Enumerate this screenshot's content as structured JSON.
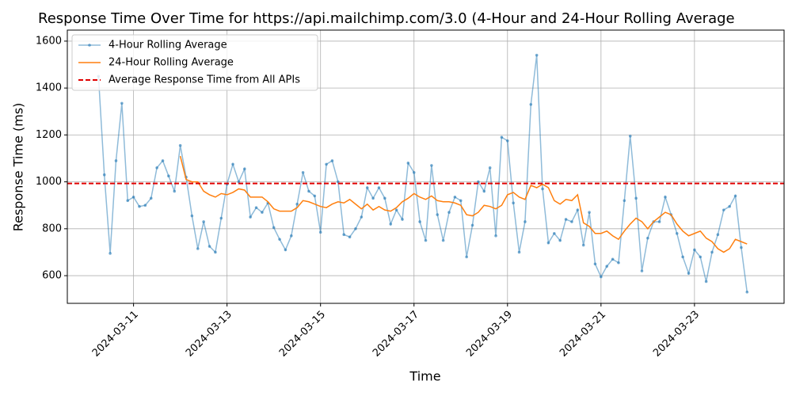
{
  "chart_data": {
    "type": "line",
    "title": "Response Time Over Time for https://api.mailchimp.com/3.0 (4-Hour and 24-Hour Rolling Average",
    "x_label": "Time",
    "y_label": "Response Time (ms)",
    "x": [
      "2024-03-10T06:00",
      "2024-03-10T09:00",
      "2024-03-10T12:00",
      "2024-03-10T15:00",
      "2024-03-10T18:00",
      "2024-03-10T21:00",
      "2024-03-11T00:00",
      "2024-03-11T03:00",
      "2024-03-11T06:00",
      "2024-03-11T09:00",
      "2024-03-11T12:00",
      "2024-03-11T15:00",
      "2024-03-11T18:00",
      "2024-03-11T21:00",
      "2024-03-12T00:00",
      "2024-03-12T03:00",
      "2024-03-12T06:00",
      "2024-03-12T09:00",
      "2024-03-12T12:00",
      "2024-03-12T15:00",
      "2024-03-12T18:00",
      "2024-03-12T21:00",
      "2024-03-13T00:00",
      "2024-03-13T03:00",
      "2024-03-13T06:00",
      "2024-03-13T09:00",
      "2024-03-13T12:00",
      "2024-03-13T15:00",
      "2024-03-13T18:00",
      "2024-03-13T21:00",
      "2024-03-14T00:00",
      "2024-03-14T03:00",
      "2024-03-14T06:00",
      "2024-03-14T09:00",
      "2024-03-14T12:00",
      "2024-03-14T15:00",
      "2024-03-14T18:00",
      "2024-03-14T21:00",
      "2024-03-15T00:00",
      "2024-03-15T03:00",
      "2024-03-15T06:00",
      "2024-03-15T09:00",
      "2024-03-15T12:00",
      "2024-03-15T15:00",
      "2024-03-15T18:00",
      "2024-03-15T21:00",
      "2024-03-16T00:00",
      "2024-03-16T03:00",
      "2024-03-16T06:00",
      "2024-03-16T09:00",
      "2024-03-16T12:00",
      "2024-03-16T15:00",
      "2024-03-16T18:00",
      "2024-03-16T21:00",
      "2024-03-17T00:00",
      "2024-03-17T03:00",
      "2024-03-17T06:00",
      "2024-03-17T09:00",
      "2024-03-17T12:00",
      "2024-03-17T15:00",
      "2024-03-17T18:00",
      "2024-03-17T21:00",
      "2024-03-18T00:00",
      "2024-03-18T03:00",
      "2024-03-18T06:00",
      "2024-03-18T09:00",
      "2024-03-18T12:00",
      "2024-03-18T15:00",
      "2024-03-18T18:00",
      "2024-03-18T21:00",
      "2024-03-19T00:00",
      "2024-03-19T03:00",
      "2024-03-19T06:00",
      "2024-03-19T09:00",
      "2024-03-19T12:00",
      "2024-03-19T15:00",
      "2024-03-19T18:00",
      "2024-03-19T21:00",
      "2024-03-20T00:00",
      "2024-03-20T03:00",
      "2024-03-20T06:00",
      "2024-03-20T09:00",
      "2024-03-20T12:00",
      "2024-03-20T15:00",
      "2024-03-20T18:00",
      "2024-03-20T21:00",
      "2024-03-21T00:00",
      "2024-03-21T03:00",
      "2024-03-21T06:00",
      "2024-03-21T09:00",
      "2024-03-21T12:00",
      "2024-03-21T15:00",
      "2024-03-21T18:00",
      "2024-03-21T21:00",
      "2024-03-22T00:00",
      "2024-03-22T03:00",
      "2024-03-22T06:00",
      "2024-03-22T09:00",
      "2024-03-22T12:00",
      "2024-03-22T15:00",
      "2024-03-22T18:00",
      "2024-03-22T21:00",
      "2024-03-23T00:00",
      "2024-03-23T03:00",
      "2024-03-23T06:00",
      "2024-03-23T09:00",
      "2024-03-23T12:00",
      "2024-03-23T15:00",
      "2024-03-23T18:00",
      "2024-03-23T21:00",
      "2024-03-24T00:00",
      "2024-03-24T03:00"
    ],
    "series": [
      {
        "name": "4-Hour Rolling Average",
        "color": "#1f77b4",
        "markers": true,
        "values": [
          1450,
          1030,
          695,
          1090,
          1335,
          920,
          935,
          895,
          900,
          930,
          1060,
          1090,
          1025,
          960,
          1155,
          1020,
          855,
          715,
          830,
          725,
          700,
          845,
          990,
          1075,
          1000,
          1055,
          850,
          890,
          870,
          910,
          805,
          755,
          710,
          770,
          905,
          1040,
          960,
          940,
          785,
          1075,
          1090,
          1000,
          775,
          765,
          800,
          850,
          975,
          930,
          975,
          930,
          820,
          880,
          840,
          1080,
          1040,
          830,
          750,
          1070,
          860,
          750,
          870,
          935,
          920,
          680,
          815,
          1000,
          960,
          1060,
          770,
          1190,
          1175,
          910,
          700,
          830,
          1330,
          1540,
          970,
          740,
          780,
          750,
          840,
          830,
          880,
          730,
          870,
          650,
          595,
          640,
          670,
          655,
          920,
          1195,
          930,
          620,
          760,
          830,
          830,
          935,
          860,
          780,
          680,
          610,
          710,
          680,
          575,
          700,
          775,
          880,
          895,
          940,
          720,
          530
        ]
      },
      {
        "name": "24-Hour Rolling Average",
        "color": "#ff7f0e",
        "markers": false,
        "values": [
          null,
          null,
          null,
          null,
          null,
          null,
          null,
          null,
          null,
          null,
          null,
          null,
          null,
          null,
          1110,
          1010,
          1000,
          1000,
          960,
          945,
          935,
          950,
          945,
          955,
          970,
          965,
          935,
          935,
          935,
          915,
          885,
          875,
          875,
          875,
          890,
          920,
          915,
          905,
          895,
          890,
          905,
          915,
          910,
          925,
          905,
          885,
          905,
          880,
          895,
          880,
          875,
          890,
          915,
          930,
          950,
          935,
          925,
          940,
          920,
          915,
          915,
          910,
          900,
          860,
          855,
          870,
          900,
          895,
          885,
          900,
          945,
          955,
          935,
          925,
          985,
          975,
          990,
          975,
          920,
          905,
          925,
          920,
          945,
          825,
          810,
          780,
          780,
          790,
          770,
          755,
          790,
          820,
          845,
          830,
          800,
          830,
          850,
          870,
          860,
          820,
          790,
          770,
          780,
          790,
          760,
          745,
          715,
          700,
          715,
          755,
          745,
          735
        ]
      }
    ],
    "reference_line": {
      "name": "Average Response Time from All APIs",
      "value": 993,
      "color": "#e00000"
    },
    "xlim": [
      "2024-03-09T14:00",
      "2024-03-24T22:00"
    ],
    "xticks": [
      "2024-03-11",
      "2024-03-13",
      "2024-03-15",
      "2024-03-17",
      "2024-03-19",
      "2024-03-21",
      "2024-03-23"
    ],
    "ylim": [
      482,
      1647
    ],
    "yticks": [
      600,
      800,
      1000,
      1200,
      1400,
      1600
    ],
    "grid": true,
    "legend": "upper left"
  }
}
